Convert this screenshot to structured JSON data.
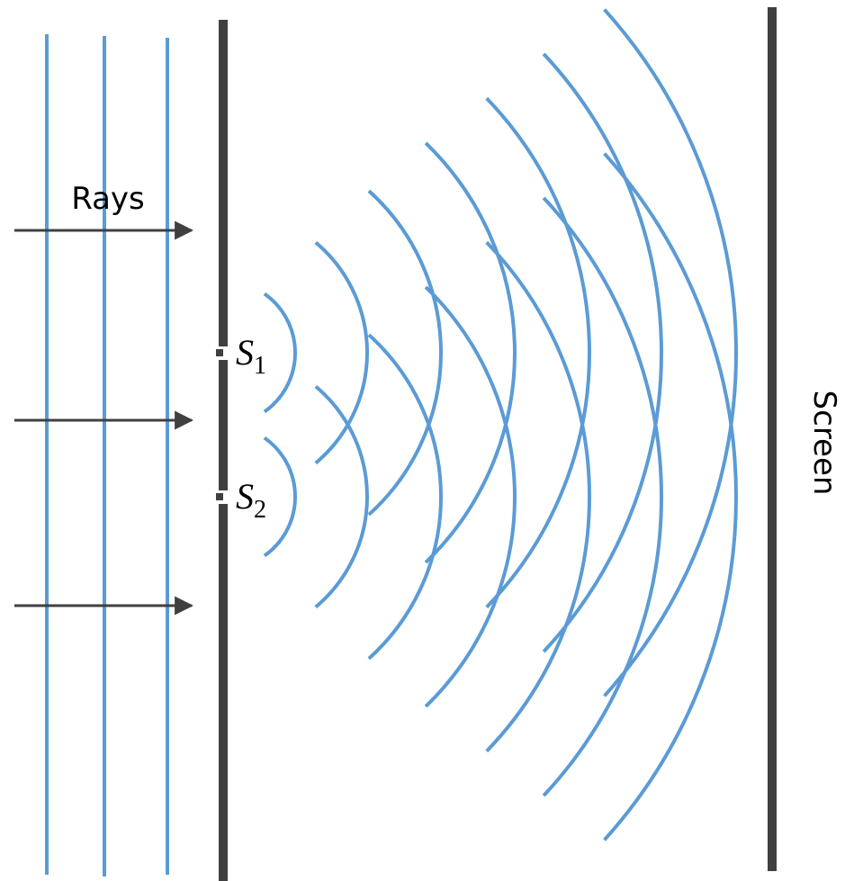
{
  "labels": {
    "rays": "Rays",
    "slit_1": {
      "letter": "S",
      "subscript": "1"
    },
    "slit_2": {
      "letter": "S",
      "subscript": "2"
    },
    "screen": "Screen"
  }
}
